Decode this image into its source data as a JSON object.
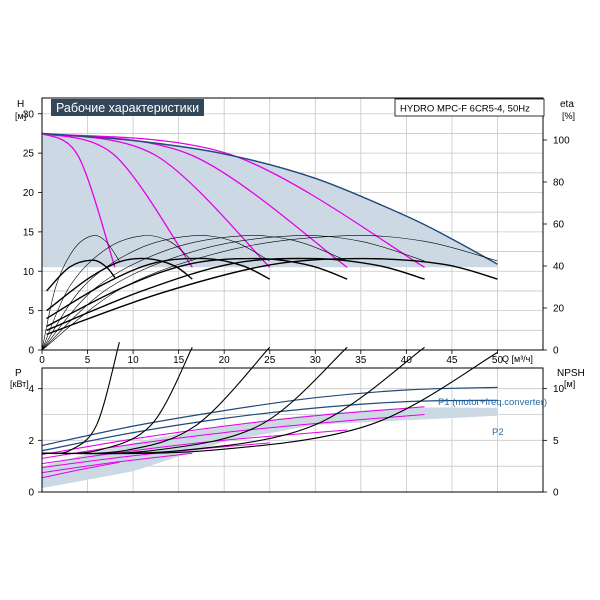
{
  "chart_data": [
    {
      "type": "line",
      "title": "Рабочие характеристики",
      "model_label": "HYDRO MPC-F 6CR5-4, 50Hz",
      "xlabel": "Q [м³/ч]",
      "ylabel_name": "H",
      "ylabel_unit": "[м]",
      "y2label_name": "eta",
      "y2label_unit": "[%]",
      "xlim": [
        0,
        55
      ],
      "ylim": [
        0,
        32
      ],
      "y2lim": [
        0,
        120
      ],
      "xticks": [
        0,
        5,
        10,
        15,
        20,
        25,
        30,
        35,
        40,
        45,
        50
      ],
      "yticks": [
        0,
        5,
        10,
        15,
        20,
        25,
        30
      ],
      "y2ticks": [
        0,
        20,
        40,
        60,
        80,
        100
      ],
      "grid": true,
      "shaded_region": {
        "upper": [
          [
            0,
            27.5
          ],
          [
            10,
            26.6
          ],
          [
            20,
            24.9
          ],
          [
            30,
            21.8
          ],
          [
            40,
            17.0
          ],
          [
            45,
            14.1
          ],
          [
            50,
            10.9
          ]
        ],
        "lower": [
          [
            50,
            10.5
          ],
          [
            40,
            10.5
          ],
          [
            0,
            10.5
          ]
        ]
      },
      "series": [
        {
          "role": "head_curve_1",
          "group": "head",
          "values": [
            [
              0,
              27.5
            ],
            [
              4,
              24.6
            ],
            [
              8,
              10.5
            ]
          ]
        },
        {
          "role": "head_curve_2",
          "group": "head",
          "values": [
            [
              0,
              27.5
            ],
            [
              8,
              24.7
            ],
            [
              16.5,
              10.5
            ]
          ]
        },
        {
          "role": "head_curve_3",
          "group": "head",
          "values": [
            [
              0,
              27.5
            ],
            [
              12.5,
              24.7
            ],
            [
              25,
              10.5
            ]
          ]
        },
        {
          "role": "head_curve_4",
          "group": "head",
          "values": [
            [
              0,
              27.5
            ],
            [
              16.5,
              24.7
            ],
            [
              33.5,
              10.5
            ]
          ]
        },
        {
          "role": "head_curve_5",
          "group": "head",
          "values": [
            [
              0,
              27.5
            ],
            [
              21,
              24.7
            ],
            [
              42,
              10.5
            ]
          ]
        },
        {
          "role": "head_curve_max",
          "group": "head_max",
          "values": [
            [
              0,
              27.5
            ],
            [
              10,
              26.6
            ],
            [
              20,
              24.9
            ],
            [
              30,
              21.8
            ],
            [
              40,
              17.0
            ],
            [
              45,
              14.1
            ],
            [
              50,
              10.9
            ]
          ]
        },
        {
          "role": "eta_curve_1",
          "group": "eta",
          "values": [
            [
              0.5,
              7.5
            ],
            [
              3,
              10.5
            ],
            [
              5.5,
              11.4
            ],
            [
              7,
              10.6
            ],
            [
              8,
              9.2
            ]
          ]
        },
        {
          "role": "eta_curve_2",
          "group": "eta",
          "values": [
            [
              0.5,
              5
            ],
            [
              5,
              9
            ],
            [
              8.5,
              11.2
            ],
            [
              11.5,
              11.6
            ],
            [
              14.5,
              10.7
            ],
            [
              16.5,
              9
            ]
          ]
        },
        {
          "role": "eta_curve_3",
          "group": "eta",
          "values": [
            [
              0.5,
              4
            ],
            [
              7,
              8.5
            ],
            [
              12.5,
              11.1
            ],
            [
              18,
              11.6
            ],
            [
              22,
              10.7
            ],
            [
              25,
              9
            ]
          ]
        },
        {
          "role": "eta_curve_4",
          "group": "eta",
          "values": [
            [
              0.5,
              3
            ],
            [
              9,
              8
            ],
            [
              16.5,
              11
            ],
            [
              24,
              11.6
            ],
            [
              29.5,
              10.7
            ],
            [
              33.5,
              9
            ]
          ]
        },
        {
          "role": "eta_curve_5",
          "group": "eta",
          "values": [
            [
              0.5,
              2.5
            ],
            [
              11,
              7.5
            ],
            [
              21,
              11
            ],
            [
              30,
              11.6
            ],
            [
              37,
              10.7
            ],
            [
              42,
              9
            ]
          ]
        },
        {
          "role": "eta_curve_6",
          "group": "eta",
          "values": [
            [
              0.5,
              2
            ],
            [
              13,
              7.2
            ],
            [
              25,
              10.8
            ],
            [
              35,
              11.6
            ],
            [
              44,
              10.9
            ],
            [
              50,
              9
            ]
          ]
        },
        {
          "role": "eta_thin_1",
          "group": "eta_thin",
          "values": [
            [
              0,
              0
            ],
            [
              1.5,
              8
            ],
            [
              3.5,
              12.8
            ],
            [
              5.5,
              14.5
            ],
            [
              7,
              13.8
            ],
            [
              8.5,
              11.3
            ]
          ]
        },
        {
          "role": "eta_thin_2",
          "group": "eta_thin",
          "values": [
            [
              0,
              0
            ],
            [
              3,
              8
            ],
            [
              7,
              12.8
            ],
            [
              11,
              14.5
            ],
            [
              14,
              13.8
            ],
            [
              16.5,
              11.3
            ]
          ]
        },
        {
          "role": "eta_thin_3",
          "group": "eta_thin",
          "values": [
            [
              0,
              0
            ],
            [
              4.5,
              8
            ],
            [
              10.5,
              12.8
            ],
            [
              16.5,
              14.5
            ],
            [
              21,
              13.8
            ],
            [
              25,
              11.3
            ]
          ]
        },
        {
          "role": "eta_thin_4",
          "group": "eta_thin",
          "values": [
            [
              0,
              0
            ],
            [
              6,
              8
            ],
            [
              14,
              12.8
            ],
            [
              22,
              14.5
            ],
            [
              28,
              13.8
            ],
            [
              33.5,
              11.3
            ]
          ]
        },
        {
          "role": "eta_thin_5",
          "group": "eta_thin",
          "values": [
            [
              0,
              0
            ],
            [
              7.5,
              8
            ],
            [
              17.5,
              12.8
            ],
            [
              27.5,
              14.5
            ],
            [
              35,
              13.8
            ],
            [
              42,
              11.3
            ]
          ]
        },
        {
          "role": "eta_thin_6",
          "group": "eta_thin",
          "values": [
            [
              0,
              0
            ],
            [
              9,
              8
            ],
            [
              21,
              12.8
            ],
            [
              33,
              14.5
            ],
            [
              42,
              13.8
            ],
            [
              50,
              11.3
            ]
          ]
        }
      ]
    },
    {
      "type": "line",
      "xlim": [
        0,
        55
      ],
      "ylabel_name": "P",
      "ylabel_unit": "[кВт]",
      "y2label_name": "NPSH",
      "y2label_unit": "[м]",
      "ylim": [
        0,
        4.8
      ],
      "y2lim": [
        0,
        12
      ],
      "yticks": [
        0,
        2,
        4
      ],
      "y2ticks": [
        0,
        5,
        10
      ],
      "grid": true,
      "annotations": [
        "P1 (motor+freq.converter)",
        "P2"
      ],
      "shaded_region": {
        "upper": [
          [
            0,
            1.0
          ],
          [
            10,
            1.9
          ],
          [
            20,
            2.55
          ],
          [
            30,
            3.0
          ],
          [
            40,
            3.25
          ],
          [
            50,
            3.25
          ]
        ],
        "lower": [
          [
            50,
            2.95
          ],
          [
            30,
            2.6
          ],
          [
            20,
            1.95
          ],
          [
            10,
            0.8
          ],
          [
            0,
            0.15
          ]
        ]
      },
      "series": [
        {
          "role": "p1_max",
          "group": "p_max",
          "values": [
            [
              0,
              1.8
            ],
            [
              10,
              2.55
            ],
            [
              20,
              3.15
            ],
            [
              30,
              3.65
            ],
            [
              40,
              3.95
            ],
            [
              50,
              4.05
            ]
          ]
        },
        {
          "role": "p2_max",
          "group": "p_max",
          "values": [
            [
              0,
              1.6
            ],
            [
              10,
              2.3
            ],
            [
              20,
              2.85
            ],
            [
              30,
              3.25
            ],
            [
              40,
              3.5
            ],
            [
              50,
              3.55
            ]
          ]
        },
        {
          "role": "p_stage_1",
          "group": "p_stage",
          "values": [
            [
              0,
              1.45
            ],
            [
              10,
              2.05
            ],
            [
              20,
              2.55
            ],
            [
              30,
              2.95
            ],
            [
              42,
              3.3
            ]
          ]
        },
        {
          "role": "p_stage_2",
          "group": "p_stage",
          "values": [
            [
              0,
              1.3
            ],
            [
              10,
              1.85
            ],
            [
              20,
              2.3
            ],
            [
              30,
              2.65
            ],
            [
              42,
              3.0
            ]
          ]
        },
        {
          "role": "p_stage_3",
          "group": "p_stage",
          "values": [
            [
              0,
              1.1
            ],
            [
              10,
              1.6
            ],
            [
              20,
              2.0
            ],
            [
              33.5,
              2.4
            ]
          ]
        },
        {
          "role": "p_stage_4",
          "group": "p_stage",
          "values": [
            [
              0,
              0.95
            ],
            [
              10,
              1.4
            ],
            [
              20,
              1.75
            ],
            [
              25,
              1.9
            ]
          ]
        },
        {
          "role": "p_stage_5",
          "group": "p_stage",
          "values": [
            [
              0,
              0.75
            ],
            [
              8,
              1.15
            ],
            [
              16.5,
              1.5
            ]
          ]
        },
        {
          "role": "p_stage_6",
          "group": "p_stage",
          "values": [
            [
              0,
              0.55
            ],
            [
              4,
              0.85
            ],
            [
              8.5,
              1.15
            ]
          ]
        },
        {
          "role": "npsh_1",
          "group": "npsh",
          "values": [
            [
              0,
              1.5
            ],
            [
              3,
              1.6
            ],
            [
              6,
              2.6
            ],
            [
              8.5,
              5.8
            ]
          ]
        },
        {
          "role": "npsh_2",
          "group": "npsh",
          "values": [
            [
              0,
              1.5
            ],
            [
              6,
              1.6
            ],
            [
              12,
              2.6
            ],
            [
              16.5,
              5.6
            ]
          ]
        },
        {
          "role": "npsh_3",
          "group": "npsh",
          "values": [
            [
              0,
              1.5
            ],
            [
              9,
              1.6
            ],
            [
              17,
              2.6
            ],
            [
              25,
              5.6
            ]
          ]
        },
        {
          "role": "npsh_4",
          "group": "npsh",
          "values": [
            [
              0,
              1.5
            ],
            [
              12,
              1.6
            ],
            [
              24,
              2.6
            ],
            [
              33.5,
              5.6
            ]
          ]
        },
        {
          "role": "npsh_5",
          "group": "npsh",
          "values": [
            [
              0,
              1.5
            ],
            [
              15,
              1.6
            ],
            [
              30,
              2.6
            ],
            [
              42,
              5.6
            ]
          ]
        },
        {
          "role": "npsh_6",
          "group": "npsh",
          "values": [
            [
              0,
              1.5
            ],
            [
              18,
              1.6
            ],
            [
              36,
              2.6
            ],
            [
              50,
              5.4
            ]
          ]
        }
      ]
    }
  ],
  "colors": {
    "grid": "#c8c8c8",
    "shade": "#ccd9e4",
    "magenta": "#e600e6",
    "navy": "#1f4a7a",
    "black": "#000000",
    "title_bg": "#33475b",
    "title_fg": "#ffffff",
    "annotation": "#2a6aa5"
  }
}
